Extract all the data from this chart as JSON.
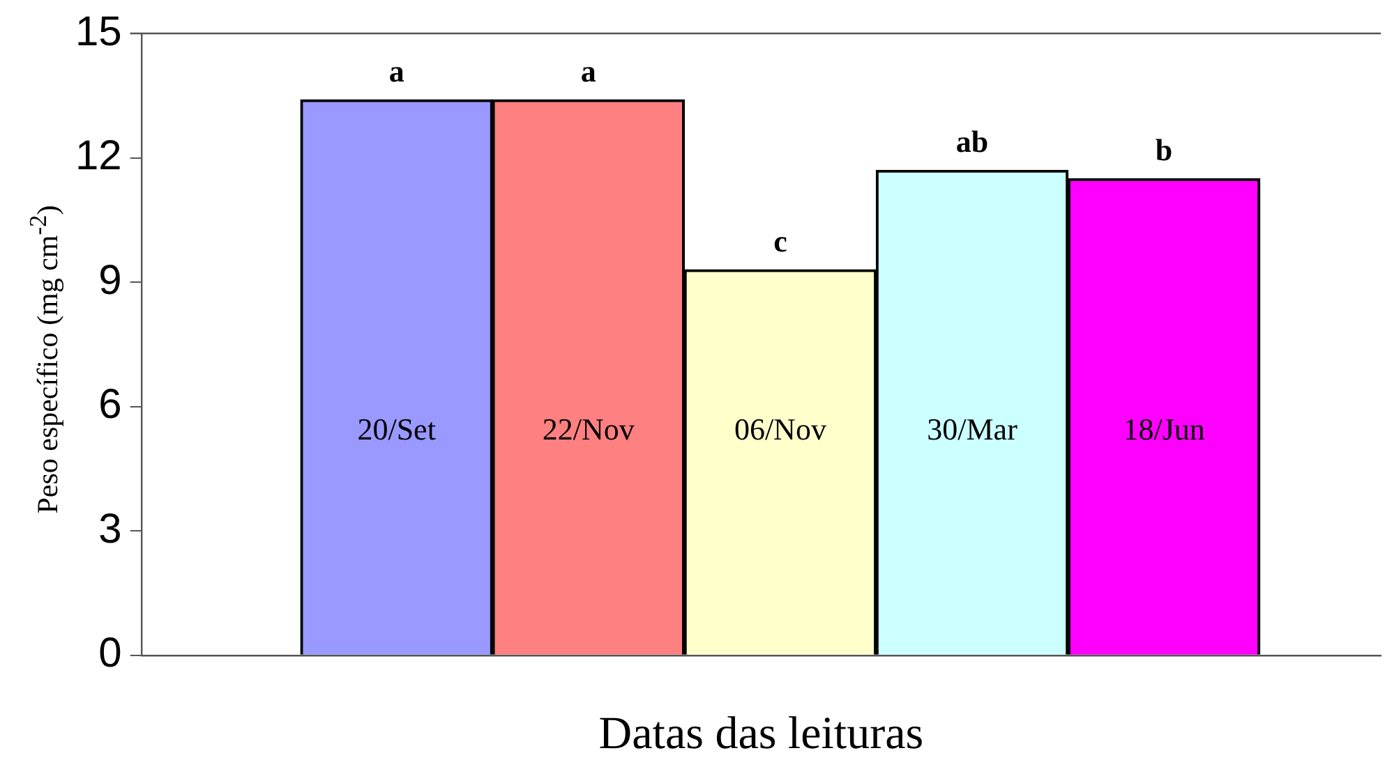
{
  "chart_data": {
    "type": "bar",
    "xlabel": "Datas das leituras",
    "ylabel": "Peso específico (mg cm$^{-2}$)",
    "categories": [
      "20/Set",
      "22/Nov",
      "06/Nov",
      "30/Mar",
      "18/Jun"
    ],
    "values": [
      13.4,
      13.4,
      9.3,
      11.7,
      11.5
    ],
    "colors": [
      "#9999ff",
      "#ff8080",
      "#ffffcc",
      "#ccffff",
      "#ff00ff"
    ],
    "ylim": [
      0,
      15
    ],
    "yticks": [
      0,
      3,
      6,
      9,
      12,
      15
    ],
    "grid": false,
    "legend": false,
    "annotations": [
      {
        "text": "a",
        "x": "20/Set",
        "y": 13.4
      },
      {
        "text": "a",
        "x": "22/Nov",
        "y": 13.4
      },
      {
        "text": "c",
        "x": "06/Nov",
        "y": 9.3
      },
      {
        "text": "ab",
        "x": "30/Mar",
        "y": 11.7
      },
      {
        "text": "b",
        "x": "18/Jun",
        "y": 11.5
      }
    ]
  }
}
